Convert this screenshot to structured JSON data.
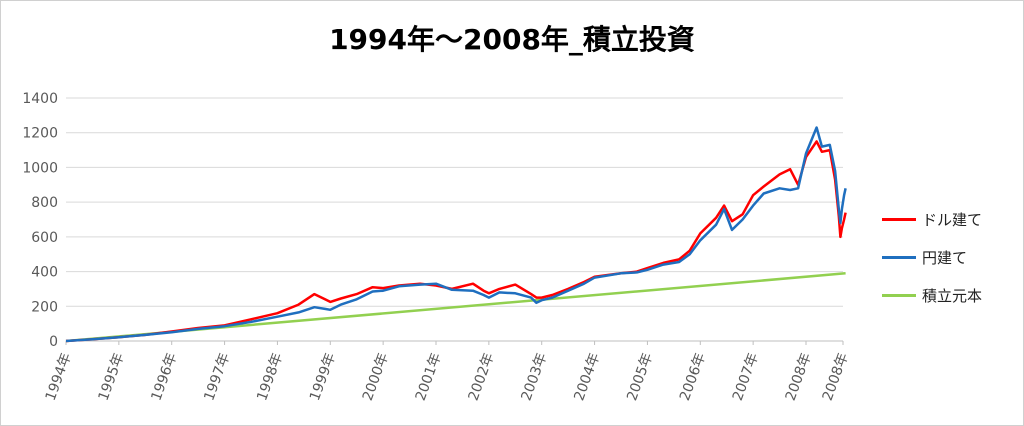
{
  "chart_data": {
    "type": "line",
    "title": "1994年～2008年_積立投資",
    "xlabel": "",
    "ylabel": "",
    "ylim": [
      0,
      1400
    ],
    "yticks": [
      0,
      200,
      400,
      600,
      800,
      1000,
      1200,
      1400
    ],
    "xlim": [
      1994,
      2008.7
    ],
    "xticks": [
      {
        "x": 1994,
        "label": "1994年"
      },
      {
        "x": 1995,
        "label": "1995年"
      },
      {
        "x": 1996,
        "label": "1996年"
      },
      {
        "x": 1997,
        "label": "1997年"
      },
      {
        "x": 1998,
        "label": "1998年"
      },
      {
        "x": 1999,
        "label": "1999年"
      },
      {
        "x": 2000,
        "label": "2000年"
      },
      {
        "x": 2001,
        "label": "2001年"
      },
      {
        "x": 2002,
        "label": "2002年"
      },
      {
        "x": 2003,
        "label": "2003年"
      },
      {
        "x": 2004,
        "label": "2004年"
      },
      {
        "x": 2005,
        "label": "2005年"
      },
      {
        "x": 2006,
        "label": "2006年"
      },
      {
        "x": 2007,
        "label": "2007年"
      },
      {
        "x": 2008,
        "label": "2008年"
      },
      {
        "x": 2008.7,
        "label": "2008年"
      }
    ],
    "grid": "horizontal",
    "legend_position": "right",
    "series": [
      {
        "name": "ドル建て",
        "color": "#ff0000",
        "points": [
          [
            1994.0,
            0
          ],
          [
            1994.5,
            10
          ],
          [
            1995.0,
            22
          ],
          [
            1995.5,
            35
          ],
          [
            1996.0,
            55
          ],
          [
            1996.5,
            75
          ],
          [
            1997.0,
            90
          ],
          [
            1997.5,
            125
          ],
          [
            1998.0,
            160
          ],
          [
            1998.4,
            210
          ],
          [
            1998.7,
            270
          ],
          [
            1998.9,
            240
          ],
          [
            1999.0,
            225
          ],
          [
            1999.2,
            245
          ],
          [
            1999.5,
            270
          ],
          [
            1999.8,
            310
          ],
          [
            2000.0,
            305
          ],
          [
            2000.3,
            320
          ],
          [
            2000.7,
            330
          ],
          [
            2001.0,
            320
          ],
          [
            2001.3,
            300
          ],
          [
            2001.7,
            330
          ],
          [
            2001.9,
            290
          ],
          [
            2002.0,
            275
          ],
          [
            2002.2,
            300
          ],
          [
            2002.5,
            325
          ],
          [
            2002.8,
            270
          ],
          [
            2002.9,
            250
          ],
          [
            2003.0,
            250
          ],
          [
            2003.2,
            265
          ],
          [
            2003.5,
            300
          ],
          [
            2003.8,
            340
          ],
          [
            2004.0,
            370
          ],
          [
            2004.5,
            390
          ],
          [
            2004.8,
            400
          ],
          [
            2005.0,
            420
          ],
          [
            2005.3,
            450
          ],
          [
            2005.6,
            470
          ],
          [
            2005.8,
            520
          ],
          [
            2006.0,
            620
          ],
          [
            2006.3,
            710
          ],
          [
            2006.45,
            780
          ],
          [
            2006.6,
            690
          ],
          [
            2006.8,
            730
          ],
          [
            2007.0,
            840
          ],
          [
            2007.2,
            890
          ],
          [
            2007.5,
            960
          ],
          [
            2007.7,
            990
          ],
          [
            2007.85,
            900
          ],
          [
            2008.0,
            1060
          ],
          [
            2008.2,
            1150
          ],
          [
            2008.3,
            1090
          ],
          [
            2008.45,
            1100
          ],
          [
            2008.55,
            930
          ],
          [
            2008.62,
            720
          ],
          [
            2008.65,
            600
          ],
          [
            2008.68,
            650
          ],
          [
            2008.72,
            700
          ],
          [
            2008.75,
            740
          ]
        ]
      },
      {
        "name": "円建て",
        "color": "#1f6fbf",
        "points": [
          [
            1994.0,
            0
          ],
          [
            1994.5,
            10
          ],
          [
            1995.0,
            22
          ],
          [
            1995.5,
            35
          ],
          [
            1996.0,
            50
          ],
          [
            1996.5,
            70
          ],
          [
            1997.0,
            85
          ],
          [
            1997.5,
            110
          ],
          [
            1998.0,
            140
          ],
          [
            1998.4,
            165
          ],
          [
            1998.7,
            195
          ],
          [
            1998.9,
            185
          ],
          [
            1999.0,
            180
          ],
          [
            1999.2,
            210
          ],
          [
            1999.5,
            240
          ],
          [
            1999.8,
            285
          ],
          [
            2000.0,
            290
          ],
          [
            2000.3,
            315
          ],
          [
            2000.7,
            325
          ],
          [
            2001.0,
            330
          ],
          [
            2001.3,
            295
          ],
          [
            2001.7,
            290
          ],
          [
            2001.9,
            265
          ],
          [
            2002.0,
            250
          ],
          [
            2002.2,
            280
          ],
          [
            2002.5,
            275
          ],
          [
            2002.8,
            250
          ],
          [
            2002.9,
            220
          ],
          [
            2003.0,
            235
          ],
          [
            2003.2,
            250
          ],
          [
            2003.5,
            290
          ],
          [
            2003.8,
            330
          ],
          [
            2004.0,
            365
          ],
          [
            2004.5,
            390
          ],
          [
            2004.8,
            395
          ],
          [
            2005.0,
            410
          ],
          [
            2005.3,
            440
          ],
          [
            2005.6,
            455
          ],
          [
            2005.8,
            500
          ],
          [
            2006.0,
            580
          ],
          [
            2006.3,
            670
          ],
          [
            2006.45,
            760
          ],
          [
            2006.6,
            640
          ],
          [
            2006.8,
            700
          ],
          [
            2007.0,
            780
          ],
          [
            2007.2,
            850
          ],
          [
            2007.5,
            880
          ],
          [
            2007.7,
            870
          ],
          [
            2007.85,
            880
          ],
          [
            2008.0,
            1080
          ],
          [
            2008.2,
            1230
          ],
          [
            2008.3,
            1120
          ],
          [
            2008.45,
            1130
          ],
          [
            2008.55,
            980
          ],
          [
            2008.62,
            760
          ],
          [
            2008.65,
            680
          ],
          [
            2008.68,
            760
          ],
          [
            2008.72,
            840
          ],
          [
            2008.75,
            880
          ]
        ]
      },
      {
        "name": "積立元本",
        "color": "#92d050",
        "points": [
          [
            1994.0,
            0
          ],
          [
            2008.75,
            390
          ]
        ]
      }
    ]
  }
}
